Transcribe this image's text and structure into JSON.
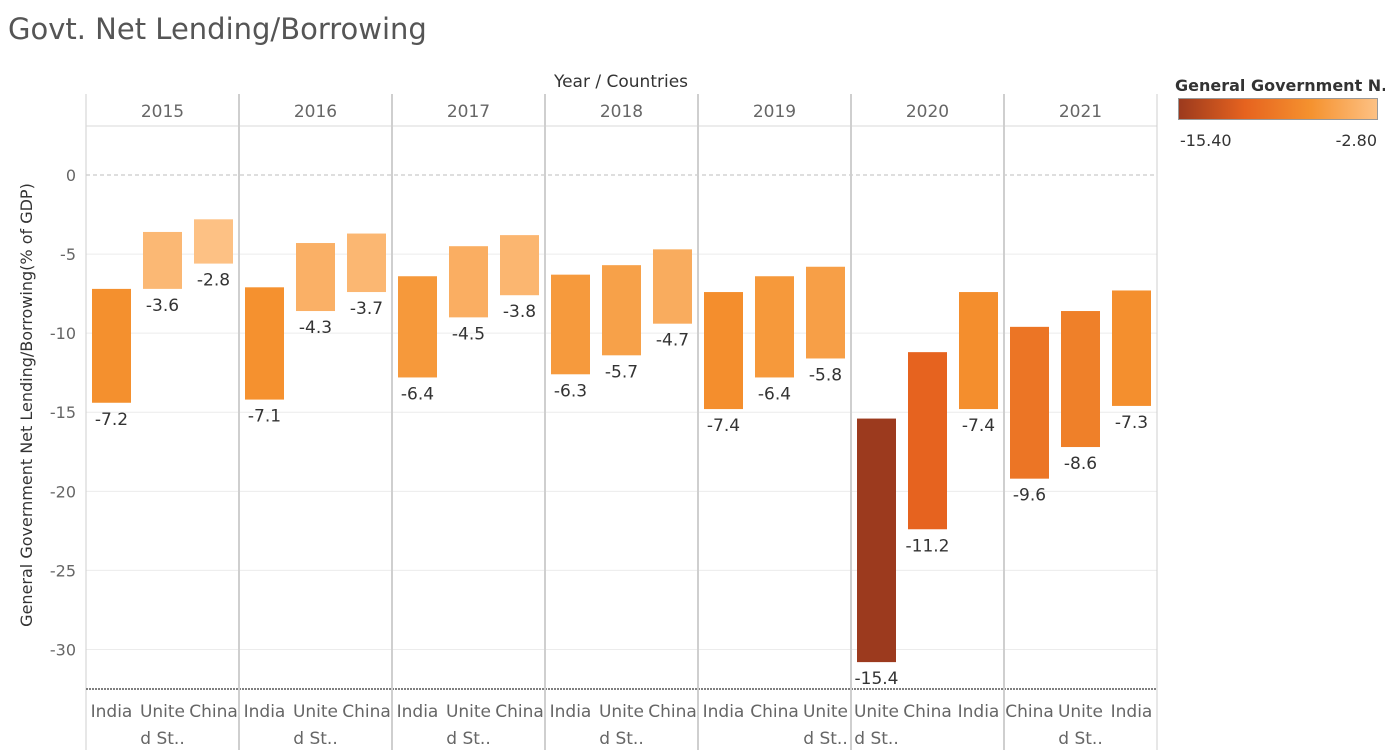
{
  "title": "Govt. Net Lending/Borrowing",
  "legend": {
    "title": "General Government N..",
    "min_label": "-15.40",
    "max_label": "-2.80",
    "colors": [
      "#9c3a1e",
      "#e6631f",
      "#f5922f",
      "#fdc184"
    ]
  },
  "chart_data": {
    "type": "bar",
    "subtype": "floating-bar",
    "column_header": "Year / Countries",
    "ylabel": "General Government Net Lending/Borrowing(% of GDP)",
    "ylim": [
      -32.5,
      3.1
    ],
    "yticks": [
      0,
      -5,
      -10,
      -15,
      -20,
      -25,
      -30
    ],
    "ytick_labels": [
      "0",
      "-5",
      "-10",
      "-15",
      "-20",
      "-25",
      "-30"
    ],
    "color_range": [
      -15.4,
      -2.8
    ],
    "panels": [
      {
        "year": "2015",
        "bars": [
          {
            "label": [
              "India"
            ],
            "top": -7.2,
            "bottom": -14.4,
            "value": -7.2,
            "value_label": "-7.2"
          },
          {
            "label": [
              "Unite",
              "d St.."
            ],
            "top": -3.6,
            "bottom": -7.2,
            "value": -3.6,
            "value_label": "-3.6"
          },
          {
            "label": [
              "China"
            ],
            "top": -2.8,
            "bottom": -5.6,
            "value": -2.8,
            "value_label": "-2.8"
          }
        ]
      },
      {
        "year": "2016",
        "bars": [
          {
            "label": [
              "India"
            ],
            "top": -7.1,
            "bottom": -14.2,
            "value": -7.1,
            "value_label": "-7.1"
          },
          {
            "label": [
              "Unite",
              "d St.."
            ],
            "top": -4.3,
            "bottom": -8.6,
            "value": -4.3,
            "value_label": "-4.3"
          },
          {
            "label": [
              "China"
            ],
            "top": -3.7,
            "bottom": -7.4,
            "value": -3.7,
            "value_label": "-3.7"
          }
        ]
      },
      {
        "year": "2017",
        "bars": [
          {
            "label": [
              "India"
            ],
            "top": -6.4,
            "bottom": -12.8,
            "value": -6.4,
            "value_label": "-6.4"
          },
          {
            "label": [
              "Unite",
              "d St.."
            ],
            "top": -4.5,
            "bottom": -9.0,
            "value": -4.5,
            "value_label": "-4.5"
          },
          {
            "label": [
              "China"
            ],
            "top": -3.8,
            "bottom": -7.6,
            "value": -3.8,
            "value_label": "-3.8"
          }
        ]
      },
      {
        "year": "2018",
        "bars": [
          {
            "label": [
              "India"
            ],
            "top": -6.3,
            "bottom": -12.6,
            "value": -6.3,
            "value_label": "-6.3"
          },
          {
            "label": [
              "Unite",
              "d St.."
            ],
            "top": -5.7,
            "bottom": -11.4,
            "value": -5.7,
            "value_label": "-5.7"
          },
          {
            "label": [
              "China"
            ],
            "top": -4.7,
            "bottom": -9.4,
            "value": -4.7,
            "value_label": "-4.7"
          }
        ]
      },
      {
        "year": "2019",
        "bars": [
          {
            "label": [
              "India"
            ],
            "top": -7.4,
            "bottom": -14.8,
            "value": -7.4,
            "value_label": "-7.4"
          },
          {
            "label": [
              "China"
            ],
            "top": -6.4,
            "bottom": -12.8,
            "value": -6.4,
            "value_label": "-6.4"
          },
          {
            "label": [
              "Unite",
              "d St.."
            ],
            "top": -5.8,
            "bottom": -11.6,
            "value": -5.8,
            "value_label": "-5.8"
          }
        ]
      },
      {
        "year": "2020",
        "bars": [
          {
            "label": [
              "Unite",
              "d St.."
            ],
            "top": -15.4,
            "bottom": -30.8,
            "value": -15.4,
            "value_label": "-15.4"
          },
          {
            "label": [
              "China"
            ],
            "top": -11.2,
            "bottom": -22.4,
            "value": -11.2,
            "value_label": "-11.2"
          },
          {
            "label": [
              "India"
            ],
            "top": -7.4,
            "bottom": -14.8,
            "value": -7.4,
            "value_label": "-7.4"
          }
        ]
      },
      {
        "year": "2021",
        "bars": [
          {
            "label": [
              "China"
            ],
            "top": -9.6,
            "bottom": -19.2,
            "value": -9.6,
            "value_label": "-9.6"
          },
          {
            "label": [
              "Unite",
              "d St.."
            ],
            "top": -8.6,
            "bottom": -17.2,
            "value": -8.6,
            "value_label": "-8.6"
          },
          {
            "label": [
              "India"
            ],
            "top": -7.3,
            "bottom": -14.6,
            "value": -7.3,
            "value_label": "-7.3"
          }
        ]
      }
    ]
  }
}
